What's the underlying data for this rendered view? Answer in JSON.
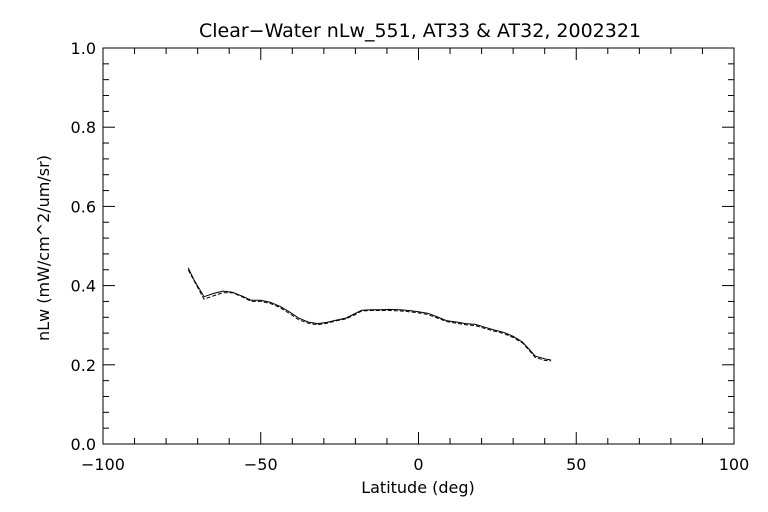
{
  "chart_data": {
    "type": "line",
    "title": "Clear−Water nLw_551, AT33 & AT32, 2002321",
    "xlabel": "Latitude (deg)",
    "ylabel": "nLw (mW/cm^2/um/sr)",
    "xlim": [
      -100,
      100
    ],
    "ylim": [
      0.0,
      1.0
    ],
    "x_ticks": [
      -100,
      -50,
      0,
      50,
      100
    ],
    "x_tick_labels": [
      "−100",
      "−50",
      "0",
      "50",
      "100"
    ],
    "y_ticks": [
      0.0,
      0.2,
      0.4,
      0.6,
      0.8,
      1.0
    ],
    "y_tick_labels": [
      "0.0",
      "0.2",
      "0.4",
      "0.6",
      "0.8",
      "1.0"
    ],
    "grid": false,
    "series": [
      {
        "color": "#000000",
        "dash": "solid",
        "x": [
          -73,
          -71,
          -68,
          -65,
          -62,
          -59,
          -56,
          -53,
          -50,
          -47,
          -44,
          -41,
          -38,
          -35,
          -32,
          -29,
          -26,
          -23,
          -20,
          -18,
          -15,
          -12,
          -9,
          -6,
          -3,
          0,
          3,
          6,
          9,
          12,
          15,
          18,
          21,
          24,
          27,
          30,
          33,
          35,
          37,
          40,
          42
        ],
        "y": [
          0.445,
          0.412,
          0.372,
          0.38,
          0.386,
          0.383,
          0.374,
          0.363,
          0.363,
          0.358,
          0.348,
          0.334,
          0.318,
          0.308,
          0.304,
          0.307,
          0.313,
          0.318,
          0.33,
          0.338,
          0.339,
          0.339,
          0.34,
          0.339,
          0.337,
          0.334,
          0.33,
          0.321,
          0.311,
          0.308,
          0.304,
          0.302,
          0.295,
          0.288,
          0.282,
          0.272,
          0.257,
          0.24,
          0.222,
          0.215,
          0.212
        ]
      },
      {
        "color": "#000000",
        "dash": "4,2",
        "x": [
          -73,
          -71,
          -68,
          -65,
          -62,
          -59,
          -56,
          -53,
          -50,
          -47,
          -44,
          -41,
          -38,
          -35,
          -32,
          -29,
          -26,
          -23,
          -20,
          -18,
          -15,
          -12,
          -9,
          -6,
          -3,
          0,
          3,
          6,
          9,
          12,
          15,
          18,
          21,
          24,
          27,
          30,
          33,
          35,
          37,
          40,
          42
        ],
        "y": [
          0.44,
          0.41,
          0.366,
          0.374,
          0.382,
          0.382,
          0.372,
          0.36,
          0.36,
          0.355,
          0.345,
          0.33,
          0.314,
          0.305,
          0.301,
          0.305,
          0.311,
          0.316,
          0.327,
          0.336,
          0.337,
          0.337,
          0.337,
          0.336,
          0.334,
          0.331,
          0.327,
          0.318,
          0.309,
          0.305,
          0.301,
          0.299,
          0.292,
          0.285,
          0.279,
          0.269,
          0.255,
          0.237,
          0.219,
          0.211,
          0.21
        ]
      }
    ]
  }
}
